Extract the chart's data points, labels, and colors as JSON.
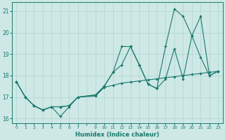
{
  "xlabel": "Humidex (Indice chaleur)",
  "background_color": "#cde8e5",
  "grid_color": "#b0d4d0",
  "line_color": "#1a7a6e",
  "xlim": [
    -0.5,
    23.5
  ],
  "ylim": [
    15.8,
    21.4
  ],
  "yticks": [
    16,
    17,
    18,
    19,
    20,
    21
  ],
  "xtick_labels": [
    "0",
    "1",
    "2",
    "3",
    "4",
    "5",
    "6",
    "7",
    "",
    "9",
    "10",
    "11",
    "12",
    "13",
    "14",
    "15",
    "16",
    "17",
    "18",
    "19",
    "20",
    "21",
    "22",
    "23"
  ],
  "series1_x": [
    0,
    1,
    2,
    3,
    4,
    5,
    6,
    7,
    9,
    10,
    11,
    12,
    13,
    14,
    15,
    16,
    17,
    18,
    19,
    20,
    21,
    22,
    23
  ],
  "series1_y": [
    17.7,
    17.0,
    16.6,
    16.4,
    16.55,
    16.1,
    16.55,
    17.0,
    17.05,
    17.45,
    17.55,
    17.65,
    17.7,
    17.75,
    17.8,
    17.85,
    17.9,
    17.95,
    18.0,
    18.05,
    18.1,
    18.15,
    18.2
  ],
  "series2_x": [
    0,
    1,
    2,
    3,
    4,
    5,
    6,
    7,
    9,
    10,
    11,
    12,
    13,
    14,
    15,
    16,
    17,
    18,
    19,
    20,
    21,
    22,
    23
  ],
  "series2_y": [
    17.7,
    17.0,
    16.6,
    16.4,
    16.55,
    16.55,
    16.6,
    17.0,
    17.1,
    17.5,
    18.15,
    18.5,
    19.35,
    18.5,
    17.6,
    17.4,
    17.85,
    19.25,
    17.85,
    19.85,
    18.85,
    18.0,
    18.2
  ],
  "series3_x": [
    0,
    1,
    2,
    3,
    4,
    5,
    6,
    7,
    9,
    10,
    11,
    12,
    13,
    14,
    15,
    16,
    17,
    18,
    19,
    20,
    21,
    22,
    23
  ],
  "series3_y": [
    17.7,
    17.0,
    16.6,
    16.4,
    16.55,
    16.55,
    16.6,
    17.0,
    17.1,
    17.5,
    18.15,
    19.35,
    19.35,
    18.5,
    17.6,
    17.4,
    19.35,
    21.1,
    20.75,
    19.85,
    20.75,
    18.0,
    18.2
  ]
}
